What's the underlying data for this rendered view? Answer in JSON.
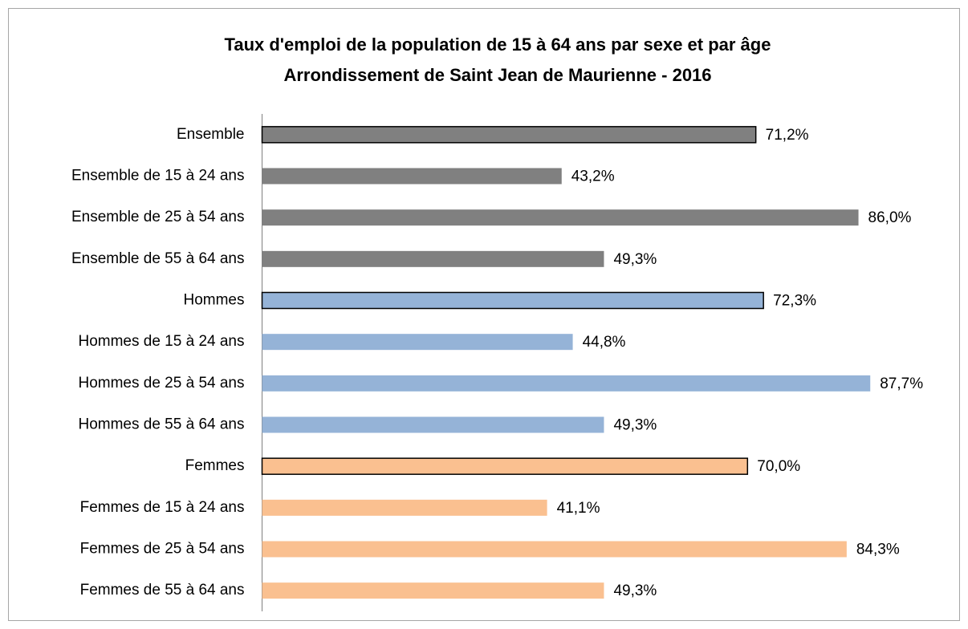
{
  "chart_data": {
    "type": "barh",
    "title": [
      "Taux d'emploi de la population de 15 à 64 ans par sexe et par âge",
      "Arrondissement de Saint Jean de Maurienne - 2016"
    ],
    "categories": [
      "Ensemble",
      "Ensemble de 15 à 24 ans",
      "Ensemble de  25 à 54 ans",
      "Ensemble de 55 à 64 ans",
      "Hommes",
      "Hommes de 15 à 24 ans",
      "Hommes de 25 à 54 ans",
      "Hommes de 55 à 64 ans",
      "Femmes",
      "Femmes de 15 à 24 ans",
      "Femmes de 25 à 54 ans",
      "Femmes de 55 à 64 ans"
    ],
    "values": [
      71.2,
      43.2,
      86.0,
      49.3,
      72.3,
      44.8,
      87.7,
      49.3,
      70.0,
      41.1,
      84.3,
      49.3
    ],
    "value_labels": [
      "71,2%",
      "43,2%",
      "86,0%",
      "49,3%",
      "72,3%",
      "44,8%",
      "87,7%",
      "49,3%",
      "70,0%",
      "41,1%",
      "84,3%",
      "49,3%"
    ],
    "colors": [
      "#808080",
      "#808080",
      "#808080",
      "#808080",
      "#95b3d7",
      "#95b3d7",
      "#95b3d7",
      "#95b3d7",
      "#fac090",
      "#fac090",
      "#fac090",
      "#fac090"
    ],
    "edgecolors": [
      "#000000",
      null,
      null,
      null,
      "#000000",
      null,
      null,
      null,
      "#000000",
      null,
      null,
      null
    ],
    "xlim": [
      0,
      100
    ]
  }
}
